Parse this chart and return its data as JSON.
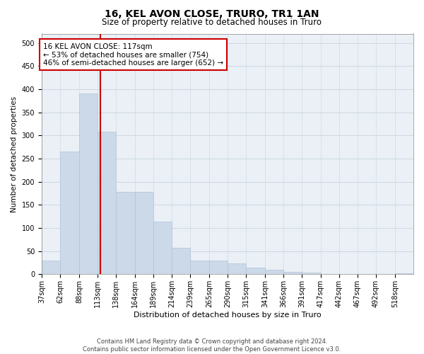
{
  "title": "16, KEL AVON CLOSE, TRURO, TR1 1AN",
  "subtitle": "Size of property relative to detached houses in Truro",
  "xlabel": "Distribution of detached houses by size in Truro",
  "ylabel": "Number of detached properties",
  "property_size": 117,
  "property_label": "16 KEL AVON CLOSE: 117sqm",
  "annotation_line1": "← 53% of detached houses are smaller (754)",
  "annotation_line2": "46% of semi-detached houses are larger (652) →",
  "bar_color": "#ccd9e8",
  "bar_edge_color": "#b0c4d8",
  "vline_color": "#cc0000",
  "annotation_box_color": "#cc0000",
  "grid_color": "#c8d4e0",
  "background_color": "#eaf0f6",
  "bins": [
    37,
    62,
    88,
    113,
    138,
    164,
    189,
    214,
    239,
    265,
    290,
    315,
    341,
    366,
    391,
    417,
    442,
    467,
    492,
    518,
    543
  ],
  "counts": [
    30,
    265,
    390,
    308,
    178,
    178,
    114,
    58,
    30,
    30,
    24,
    14,
    10,
    5,
    3,
    1,
    0,
    0,
    0,
    2
  ],
  "footer_line1": "Contains HM Land Registry data © Crown copyright and database right 2024.",
  "footer_line2": "Contains public sector information licensed under the Open Government Licence v3.0.",
  "ylim": [
    0,
    520
  ],
  "yticks": [
    0,
    50,
    100,
    150,
    200,
    250,
    300,
    350,
    400,
    450,
    500
  ],
  "title_fontsize": 10,
  "subtitle_fontsize": 8.5,
  "xlabel_fontsize": 8,
  "ylabel_fontsize": 7.5,
  "tick_fontsize": 7,
  "annotation_fontsize": 7.5,
  "footer_fontsize": 6
}
